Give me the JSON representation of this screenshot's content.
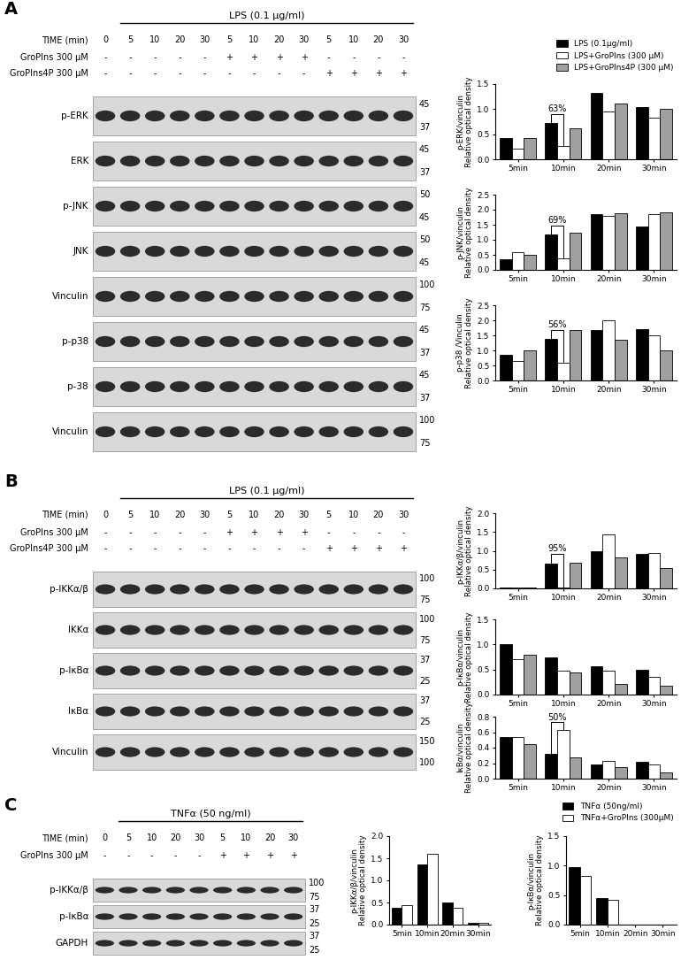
{
  "chart_data": [
    {
      "type": "bar",
      "ylabel": "p-ERK/vinculin\nRelative optical density",
      "categories": [
        "5min",
        "10min",
        "20min",
        "30min"
      ],
      "series": [
        {
          "name": "LPS (0.1μg/ml)",
          "color": "#000000",
          "values": [
            0.43,
            0.72,
            1.33,
            1.05
          ]
        },
        {
          "name": "LPS+GroPIns (300 μM)",
          "color": "#ffffff",
          "values": [
            0.22,
            0.27,
            0.96,
            0.83
          ]
        },
        {
          "name": "LPS+GroPIns4P (300 μM)",
          "color": "#a0a0a0",
          "values": [
            0.42,
            0.61,
            1.11,
            1.0
          ]
        }
      ],
      "ylim": [
        0,
        1.5
      ],
      "yticks": [
        {
          "value": 0,
          "label": "0.0"
        },
        {
          "value": 0.5,
          "label": "0.5"
        },
        {
          "value": 1.0,
          "label": "1.0"
        },
        {
          "value": 1.5,
          "label": "1.5"
        }
      ],
      "annotations": [
        {
          "category": "10min",
          "between": [
            "LPS (0.1μg/ml)",
            "LPS+GroPIns (300 μM)"
          ],
          "text": "63%"
        }
      ],
      "legend": "lower right"
    },
    {
      "type": "bar",
      "ylabel": "p-JNK/vinculin\nRelative optical density",
      "categories": [
        "5min",
        "10min",
        "20min",
        "30min"
      ],
      "series": [
        {
          "name": "LPS (0.1μg/ml)",
          "color": "#000000",
          "values": [
            0.35,
            1.18,
            1.85,
            1.45
          ]
        },
        {
          "name": "LPS+GroPIns (300 μM)",
          "color": "#ffffff",
          "values": [
            0.58,
            0.37,
            1.8,
            1.85
          ]
        },
        {
          "name": "LPS+GroPIns4P (300 μM)",
          "color": "#a0a0a0",
          "values": [
            0.5,
            1.25,
            1.87,
            1.92
          ]
        }
      ],
      "ylim": [
        0,
        2.5
      ],
      "yticks": [
        {
          "value": 0,
          "label": "0.0"
        },
        {
          "value": 0.5,
          "label": "0.5"
        },
        {
          "value": 1.0,
          "label": "1.0"
        },
        {
          "value": 1.5,
          "label": "1.5"
        },
        {
          "value": 2.0,
          "label": "2.0"
        },
        {
          "value": 2.5,
          "label": "2.5"
        }
      ],
      "annotations": [
        {
          "category": "10min",
          "between": [
            "LPS (0.1μg/ml)",
            "LPS+GroPIns (300 μM)"
          ],
          "text": "69%"
        }
      ]
    },
    {
      "type": "bar",
      "ylabel": "p-p38 /Vinculin\nRelative optical density",
      "categories": [
        "5min",
        "10min",
        "20min",
        "30min"
      ],
      "series": [
        {
          "name": "LPS (0.1μg/ml)",
          "color": "#000000",
          "values": [
            0.85,
            1.38,
            1.68,
            1.7
          ]
        },
        {
          "name": "LPS+GroPIns (300 μM)",
          "color": "#ffffff",
          "values": [
            0.65,
            0.6,
            2.0,
            1.5
          ]
        },
        {
          "name": "LPS+GroPIns4P (300 μM)",
          "color": "#a0a0a0",
          "values": [
            1.0,
            1.67,
            1.35,
            1.0
          ]
        }
      ],
      "ylim": [
        0,
        2.5
      ],
      "yticks": [
        {
          "value": 0,
          "label": "0.0"
        },
        {
          "value": 0.5,
          "label": "0.5"
        },
        {
          "value": 1.0,
          "label": "1.0"
        },
        {
          "value": 1.5,
          "label": "1.5"
        },
        {
          "value": 2.0,
          "label": "2.0"
        },
        {
          "value": 2.5,
          "label": "2.5"
        }
      ],
      "annotations": [
        {
          "category": "10min",
          "between": [
            "LPS (0.1μg/ml)",
            "LPS+GroPIns (300 μM)"
          ],
          "text": "56%"
        }
      ]
    },
    {
      "type": "bar",
      "ylabel": "p-IKKα/β/vinculin\nRelative optical density",
      "categories": [
        "5min",
        "10min",
        "20min",
        "30min"
      ],
      "series": [
        {
          "name": "LPS (0.1μg/ml)",
          "color": "#000000",
          "values": [
            0.02,
            0.67,
            1.0,
            0.92
          ]
        },
        {
          "name": "LPS+GroPIns (300 μM)",
          "color": "#ffffff",
          "values": [
            0.03,
            0.03,
            1.43,
            0.93
          ]
        },
        {
          "name": "LPS+GroPIns4P (300 μM)",
          "color": "#a0a0a0",
          "values": [
            0.02,
            0.68,
            0.82,
            0.55
          ]
        }
      ],
      "ylim": [
        0,
        2.0
      ],
      "yticks": [
        {
          "value": 0,
          "label": "0.0"
        },
        {
          "value": 0.5,
          "label": "0.5"
        },
        {
          "value": 1.0,
          "label": "1.0"
        },
        {
          "value": 1.5,
          "label": "1.5"
        },
        {
          "value": 2.0,
          "label": "2.0"
        }
      ],
      "annotations": [
        {
          "category": "10min",
          "between": [
            "LPS (0.1μg/ml)",
            "LPS+GroPIns (300 μM)"
          ],
          "text": "95%"
        }
      ]
    },
    {
      "type": "bar",
      "ylabel": "p-IκBα/vinculin\nRelative optical density",
      "categories": [
        "5min",
        "10min",
        "20min",
        "30min"
      ],
      "series": [
        {
          "name": "LPS (0.1μg/ml)",
          "color": "#000000",
          "values": [
            1.0,
            0.75,
            0.57,
            0.49
          ]
        },
        {
          "name": "LPS+GroPIns (300 μM)",
          "color": "#ffffff",
          "values": [
            0.7,
            0.47,
            0.48,
            0.36
          ]
        },
        {
          "name": "LPS+GroPIns4P (300 μM)",
          "color": "#a0a0a0",
          "values": [
            0.8,
            0.45,
            0.22,
            0.18
          ]
        }
      ],
      "ylim": [
        0,
        1.5
      ],
      "yticks": [
        {
          "value": 0,
          "label": "0.0"
        },
        {
          "value": 0.5,
          "label": "0.5"
        },
        {
          "value": 1.0,
          "label": "1.0"
        },
        {
          "value": 1.5,
          "label": "1.5"
        }
      ]
    },
    {
      "type": "bar",
      "ylabel": "IκBα/vinculin\nRelative optical density",
      "categories": [
        "5min",
        "10min",
        "20min",
        "30min"
      ],
      "series": [
        {
          "name": "LPS (0.1μg/ml)",
          "color": "#000000",
          "values": [
            0.54,
            0.32,
            0.18,
            0.22
          ]
        },
        {
          "name": "LPS+GroPIns (300 μM)",
          "color": "#ffffff",
          "values": [
            0.54,
            0.63,
            0.23,
            0.18
          ]
        },
        {
          "name": "LPS+GroPIns4P (300 μM)",
          "color": "#a0a0a0",
          "values": [
            0.45,
            0.27,
            0.15,
            0.08
          ]
        }
      ],
      "ylim": [
        0,
        0.8
      ],
      "yticks": [
        {
          "value": 0,
          "label": "0.0"
        },
        {
          "value": 0.2,
          "label": "0.2"
        },
        {
          "value": 0.4,
          "label": "0.4"
        },
        {
          "value": 0.6,
          "label": "0.6"
        },
        {
          "value": 0.8,
          "label": "0.8"
        }
      ],
      "annotations": [
        {
          "category": "10min",
          "between": [
            "LPS (0.1μg/ml)",
            "LPS+GroPIns (300 μM)"
          ],
          "text": "50%"
        }
      ]
    },
    {
      "type": "bar",
      "ylabel": "p-IKKα/β/vinculin\nRelative optical density",
      "categories": [
        "5min",
        "10min",
        "20min",
        "30min"
      ],
      "series": [
        {
          "name": "TNFα (50ng/ml)",
          "color": "#000000",
          "values": [
            0.38,
            1.37,
            0.5,
            0.04
          ]
        },
        {
          "name": "TNFα+GroPIns (300μM)",
          "color": "#ffffff",
          "values": [
            0.45,
            1.6,
            0.38,
            0.05
          ]
        }
      ],
      "ylim": [
        0,
        2.0
      ],
      "yticks": [
        {
          "value": 0,
          "label": "0.0"
        },
        {
          "value": 0.5,
          "label": "0.5"
        },
        {
          "value": 1.0,
          "label": "1.0"
        },
        {
          "value": 1.5,
          "label": "1.5"
        },
        {
          "value": 2.0,
          "label": "2.0"
        }
      ]
    },
    {
      "type": "bar",
      "ylabel": "p-IκBα/vinculin\nRelative optical density",
      "categories": [
        "5min",
        "10min",
        "20min",
        "30min"
      ],
      "series": [
        {
          "name": "TNFα (50ng/ml)",
          "color": "#000000",
          "values": [
            0.98,
            0.45,
            0,
            0
          ]
        },
        {
          "name": "TNFα+GroPIns (300μM)",
          "color": "#ffffff",
          "values": [
            0.83,
            0.42,
            0,
            0
          ]
        }
      ],
      "ylim": [
        0,
        1.5
      ],
      "yticks": [
        {
          "value": 0,
          "label": "0.0"
        },
        {
          "value": 0.5,
          "label": "0.5"
        },
        {
          "value": 1.0,
          "label": "1.0"
        },
        {
          "value": 1.5,
          "label": "1.5"
        }
      ],
      "legend": "lower right"
    }
  ],
  "panels": [
    {
      "letter": "A",
      "treatment": "LPS (0.1 μg/ml)",
      "time_label": "TIME (min)",
      "times": [
        0,
        5,
        10,
        20,
        30,
        5,
        10,
        20,
        30,
        5,
        10,
        20,
        30
      ],
      "conditions": [
        {
          "label": "GroPIns 300 μM",
          "signs": [
            "-",
            "-",
            "-",
            "-",
            "-",
            "+",
            "+",
            "+",
            "+",
            "-",
            "-",
            "-",
            "-"
          ]
        },
        {
          "label": "GroPIns4P 300 μM",
          "signs": [
            "-",
            "-",
            "-",
            "-",
            "-",
            "-",
            "-",
            "-",
            "-",
            "+",
            "+",
            "+",
            "+"
          ]
        }
      ],
      "blots": [
        {
          "label": "p-ERK",
          "markers": [
            45,
            37
          ]
        },
        {
          "label": "ERK",
          "markers": [
            45,
            37
          ]
        },
        {
          "label": "p-JNK",
          "markers": [
            50,
            45
          ]
        },
        {
          "label": "JNK",
          "markers": [
            50,
            45
          ]
        },
        {
          "label": "Vinculin",
          "markers": [
            100,
            75
          ]
        },
        {
          "label": "p-p38",
          "markers": [
            45,
            37
          ]
        },
        {
          "label": "p-38",
          "markers": [
            45,
            37
          ]
        },
        {
          "label": "Vinculin",
          "markers": [
            100,
            75
          ]
        }
      ]
    },
    {
      "letter": "B",
      "treatment": "LPS (0.1 μg/ml)",
      "time_label": "TIME (min)",
      "times": [
        0,
        5,
        10,
        20,
        30,
        5,
        10,
        20,
        30,
        5,
        10,
        20,
        30
      ],
      "conditions": [
        {
          "label": "GroPIns 300 μM",
          "signs": [
            "-",
            "-",
            "-",
            "-",
            "-",
            "+",
            "+",
            "+",
            "+",
            "-",
            "-",
            "-",
            "-"
          ]
        },
        {
          "label": "GroPIns4P 300 μM",
          "signs": [
            "-",
            "-",
            "-",
            "-",
            "-",
            "-",
            "-",
            "-",
            "-",
            "+",
            "+",
            "+",
            "+"
          ]
        }
      ],
      "blots": [
        {
          "label": "p-IKKα/β",
          "markers": [
            100,
            75
          ]
        },
        {
          "label": "IKKα",
          "markers": [
            100,
            75
          ]
        },
        {
          "label": "p-IκBα",
          "markers": [
            37,
            25
          ]
        },
        {
          "label": "IκBα",
          "markers": [
            37,
            25
          ]
        },
        {
          "label": "Vinculin",
          "markers": [
            150,
            100
          ]
        }
      ]
    },
    {
      "letter": "C",
      "treatment": "TNFα (50 ng/ml)",
      "time_label": "TIME (min)",
      "times": [
        0,
        5,
        10,
        20,
        30,
        5,
        10,
        20,
        30
      ],
      "conditions": [
        {
          "label": "GroPIns 300 μM",
          "signs": [
            "-",
            "-",
            "-",
            "-",
            "-",
            "+",
            "+",
            "+",
            "+"
          ]
        }
      ],
      "blots": [
        {
          "label": "p-IKKα/β",
          "markers": [
            100,
            75
          ]
        },
        {
          "label": "p-IκBα",
          "markers": [
            37,
            25
          ]
        },
        {
          "label": "GAPDH",
          "markers": [
            37,
            25
          ]
        }
      ]
    }
  ]
}
